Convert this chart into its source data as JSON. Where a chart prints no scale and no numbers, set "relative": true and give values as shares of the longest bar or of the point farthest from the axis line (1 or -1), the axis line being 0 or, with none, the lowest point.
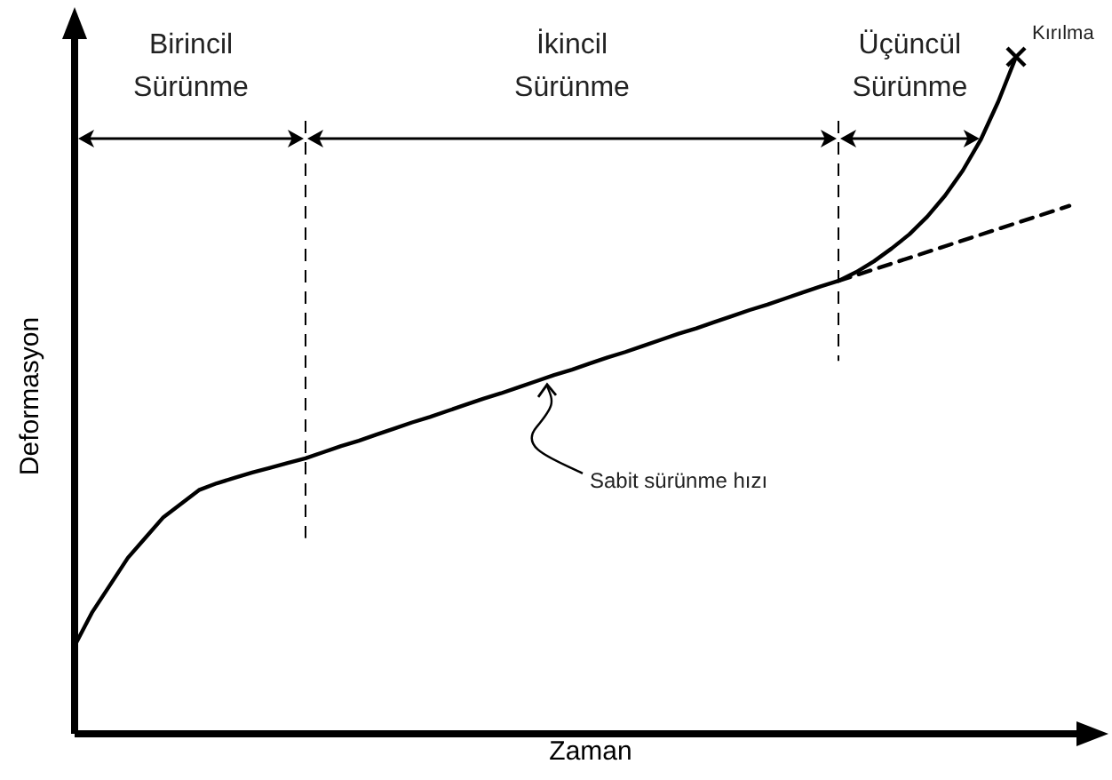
{
  "chart_data": {
    "type": "line",
    "relative": true,
    "tick_labels": false,
    "xlabel": "Zaman",
    "ylabel": "Deformasyon",
    "categories": [
      null,
      null,
      null,
      null,
      null,
      null,
      null,
      null,
      null,
      null,
      null,
      null,
      null,
      null,
      null,
      null,
      null,
      null,
      null,
      null,
      null,
      null,
      null,
      null,
      null,
      null,
      null,
      null,
      null,
      null,
      null,
      null,
      null,
      null,
      null,
      null,
      null,
      null,
      null,
      null,
      null,
      null,
      null,
      null,
      null,
      null,
      null,
      null,
      null,
      null,
      null,
      null,
      null,
      null,
      null,
      null,
      null
    ],
    "series": [
      {
        "color": "#000000",
        "values": [
          0.13,
          0.18,
          0.22,
          0.26,
          0.29,
          0.32,
          0.34,
          0.36,
          0.37,
          0.378,
          0.386,
          0.393,
          0.4,
          0.407,
          0.416,
          0.425,
          0.433,
          0.442,
          0.451,
          0.46,
          0.468,
          0.477,
          0.486,
          0.495,
          0.503,
          0.512,
          0.521,
          0.53,
          0.538,
          0.547,
          0.556,
          0.564,
          0.573,
          0.582,
          0.591,
          0.599,
          0.608,
          0.617,
          0.626,
          0.634,
          0.643,
          0.652,
          0.661,
          0.669,
          0.682,
          0.698,
          0.717,
          0.738,
          0.764,
          0.795,
          0.832,
          0.877,
          0.934,
          1,
          null,
          null,
          null
        ]
      },
      {
        "type": "line",
        "color": "#000000",
        "line_style": "dashed",
        "values": [
          null,
          null,
          null,
          null,
          null,
          null,
          null,
          null,
          null,
          null,
          null,
          null,
          null,
          null,
          null,
          null,
          null,
          null,
          null,
          null,
          null,
          null,
          null,
          null,
          null,
          null,
          null,
          null,
          null,
          null,
          null,
          null,
          null,
          null,
          null,
          null,
          null,
          null,
          null,
          null,
          null,
          null,
          null,
          0.669,
          null,
          null,
          null,
          null,
          null,
          null,
          null,
          null,
          null,
          null,
          null,
          null,
          0.78
        ]
      }
    ],
    "annotations": [
      "Birincil Sürünme",
      "İkincil Sürünme",
      "Üçüncül Sürünme",
      "Sabit sürünme hızı",
      "Kırılma"
    ]
  }
}
